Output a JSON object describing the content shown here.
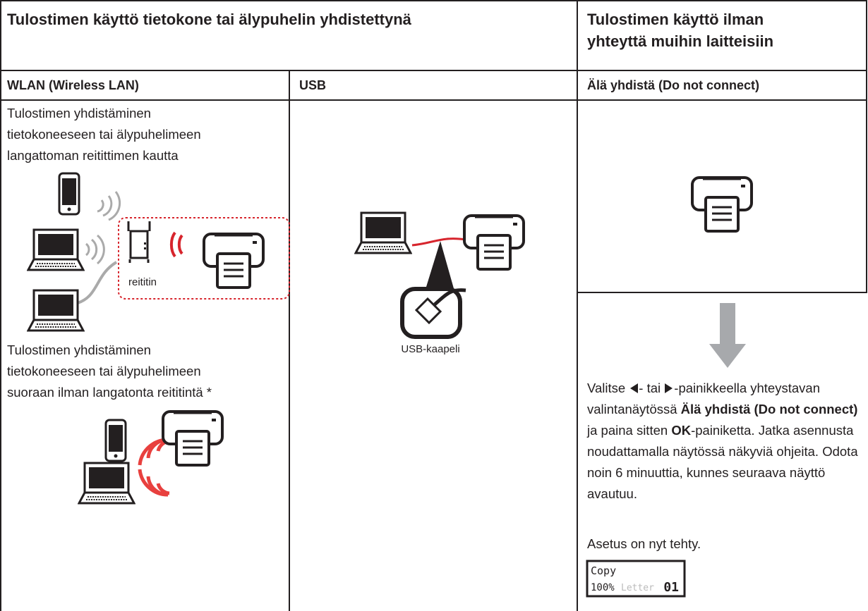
{
  "header": {
    "connected_title": "Tulostimen käyttö tietokone tai älypuhelin yhdistettynä",
    "standalone_title": [
      "Tulostimen käyttö ilman",
      "yhteyttä muihin laitteisiin"
    ]
  },
  "columns": [
    "WLAN (Wireless LAN)",
    "USB",
    "Älä yhdistä (Do not connect)"
  ],
  "wlan": {
    "router_text": [
      "Tulostimen yhdistäminen",
      "tietokoneeseen tai älypuhelimeen",
      "langattoman reitittimen kautta"
    ],
    "router_label": "reititin",
    "direct_text": [
      "Tulostimen yhdistäminen",
      "tietokoneeseen tai älypuhelimeen",
      "suoraan ilman langatonta reititintä *"
    ]
  },
  "usb": {
    "cable_label": "USB-kaapeli"
  },
  "standalone": {
    "instructions": [
      "Valitse ",
      "- tai ",
      "-painikkeella yhteystavan valintanäytössä ",
      "Älä yhdistä (Do not connect)",
      " ja paina sitten ",
      "OK",
      "-painiketta. Jatka asennusta noudattamalla näytössä näkyviä ohjeita. Odota noin 6 minuuttia, kunnes seuraava näyttö avautuu."
    ],
    "done": "Asetus on nyt tehty.",
    "lcd": {
      "mode": "Copy",
      "zoom": "100%",
      "paper": "Letter",
      "copies": "01"
    }
  }
}
